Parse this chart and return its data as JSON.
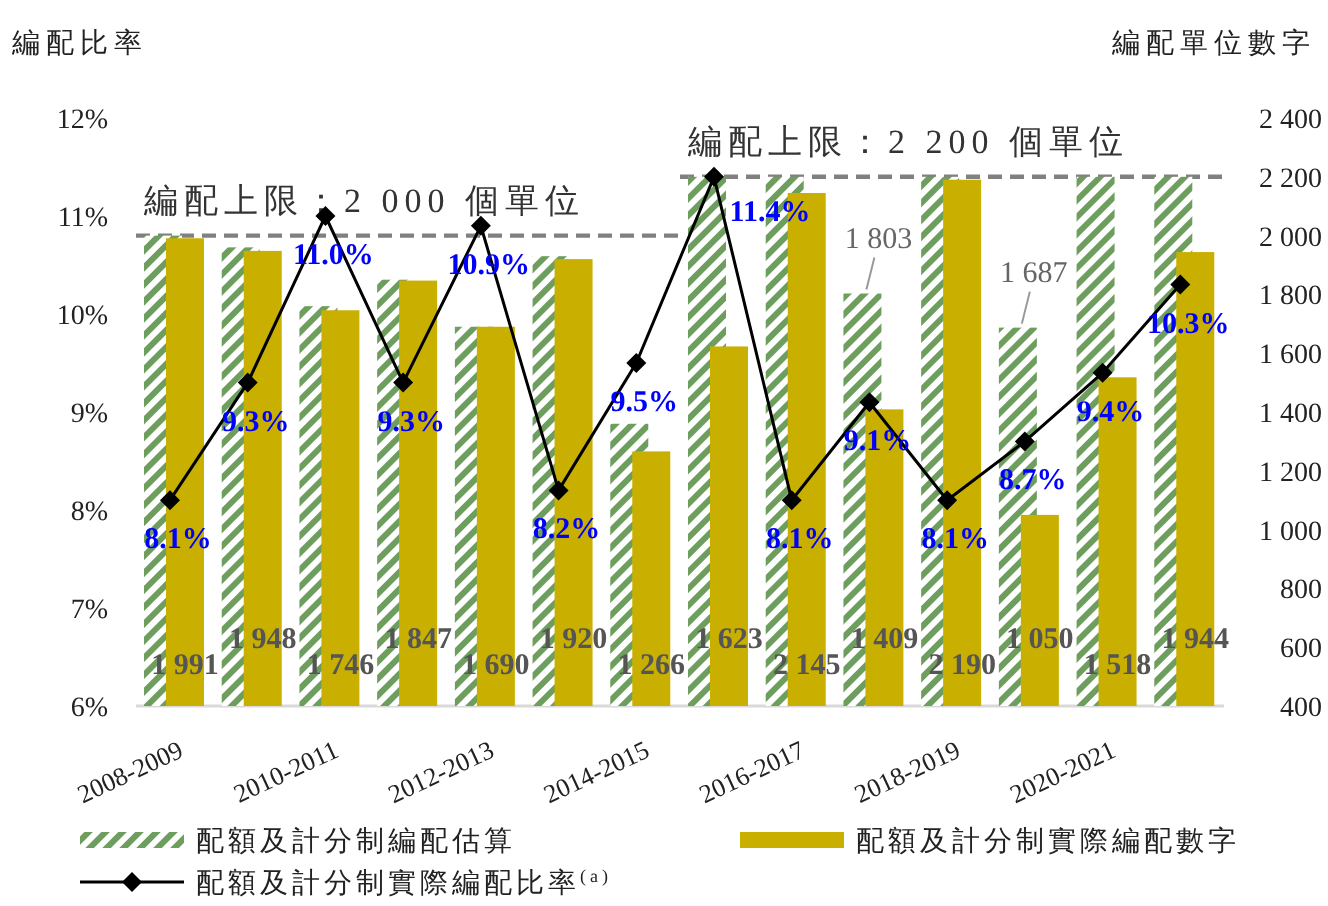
{
  "chart_data": {
    "type": "bar",
    "categories": [
      "2008-2009",
      null,
      "2010-2011",
      null,
      "2012-2013",
      null,
      "2014-2015",
      null,
      "2016-2017",
      null,
      "2018-2019",
      null,
      "2020-2021",
      null
    ],
    "ylabel": "編配比率",
    "y2label": "編配單位數字",
    "ylim": [
      6,
      12
    ],
    "yticks": [
      {
        "value": 6,
        "label": "6%"
      },
      {
        "value": 7,
        "label": "7%"
      },
      {
        "value": 8,
        "label": "8%"
      },
      {
        "value": 9,
        "label": "9%"
      },
      {
        "value": 10,
        "label": "10%"
      },
      {
        "value": 11,
        "label": "11%"
      },
      {
        "value": 12,
        "label": "12%"
      }
    ],
    "y2lim": [
      400,
      2400
    ],
    "y2ticks": [
      400,
      600,
      800,
      {
        "value": 1000,
        "label": "1 000"
      },
      {
        "value": 1200,
        "label": "1 200"
      },
      {
        "value": 1400,
        "label": "1 400"
      },
      {
        "value": 1600,
        "label": "1 600"
      },
      {
        "value": 1800,
        "label": "1 800"
      },
      {
        "value": 2000,
        "label": "2 000"
      },
      {
        "value": 2200,
        "label": "2 200"
      },
      {
        "value": 2400,
        "label": "2 400"
      }
    ],
    "series": [
      {
        "name": "配額及計分制編配估算",
        "axis": "y2",
        "color": "#6e9e5e",
        "values": [
          2000,
          1960,
          1760,
          1850,
          1690,
          1930,
          1360,
          2200,
          2200,
          1803,
          2200,
          1687,
          2200,
          2200
        ],
        "value_labels": [
          null,
          null,
          null,
          null,
          null,
          null,
          null,
          null,
          null,
          "1 803",
          null,
          "1 687",
          null,
          null
        ]
      },
      {
        "name": "配額及計分制實際編配數字",
        "axis": "y2",
        "color": "#c9b000",
        "values": [
          1991,
          1948,
          1746,
          1847,
          1690,
          1920,
          1266,
          1623,
          2145,
          1409,
          2190,
          1050,
          1518,
          1944
        ],
        "value_labels": [
          "1 991",
          "1 948",
          "1 746",
          "1 847",
          "1 690",
          "1 920",
          "1 266",
          "1 623",
          "2 145",
          "1 409",
          "2 190",
          "1 050",
          "1 518",
          "1 944"
        ]
      },
      {
        "name": "配額及計分制實際編配比率$^{(a)}$",
        "type": "line",
        "axis": "y",
        "color": "#000000",
        "marker": "diamond",
        "values": [
          8.1,
          9.3,
          11.0,
          9.3,
          10.9,
          8.2,
          9.5,
          11.4,
          8.1,
          9.1,
          8.1,
          8.7,
          9.4,
          10.3
        ],
        "value_labels": [
          "8.1%",
          "9.3%",
          "11.0%",
          "9.3%",
          "10.9%",
          "8.2%",
          "9.5%",
          "11.4%",
          "8.1%",
          "9.1%",
          "8.1%",
          "8.7%",
          "9.4%",
          "10.3%"
        ]
      }
    ],
    "ref_lines": [
      {
        "axis": "y2",
        "value": 2000,
        "label": "編配上限：2 000 個單位",
        "color": "#808080",
        "line_style": "dashed"
      },
      {
        "axis": "y2",
        "value": 2200,
        "label": "編配上限：2 200 個單位",
        "color": "#808080",
        "line_style": "dashed"
      }
    ],
    "legend": "bottom"
  }
}
